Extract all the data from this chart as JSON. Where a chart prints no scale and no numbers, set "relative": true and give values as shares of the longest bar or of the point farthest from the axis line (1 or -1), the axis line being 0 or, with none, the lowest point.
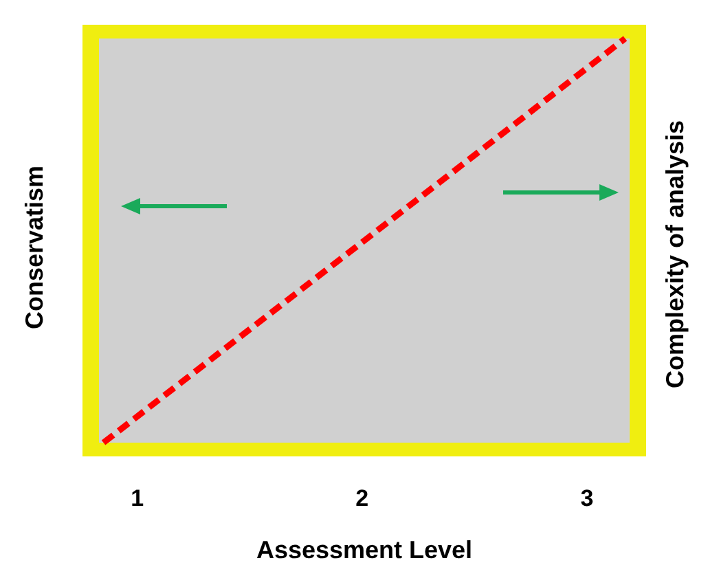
{
  "chart_data": {
    "type": "line",
    "relative": true,
    "xlabel": "Assessment Level",
    "ylabel": "Conservatism",
    "y2label": "Complexity of analysis",
    "xlim": [
      0.83,
      3.19
    ],
    "xticks": [
      1,
      2,
      3
    ],
    "x": [
      0.85,
      3.17
    ],
    "series": [
      {
        "color": "#ff0000",
        "values": [
          0,
          1
        ]
      }
    ],
    "line_style": "dashed",
    "marker": "none",
    "grid": false
  }
}
